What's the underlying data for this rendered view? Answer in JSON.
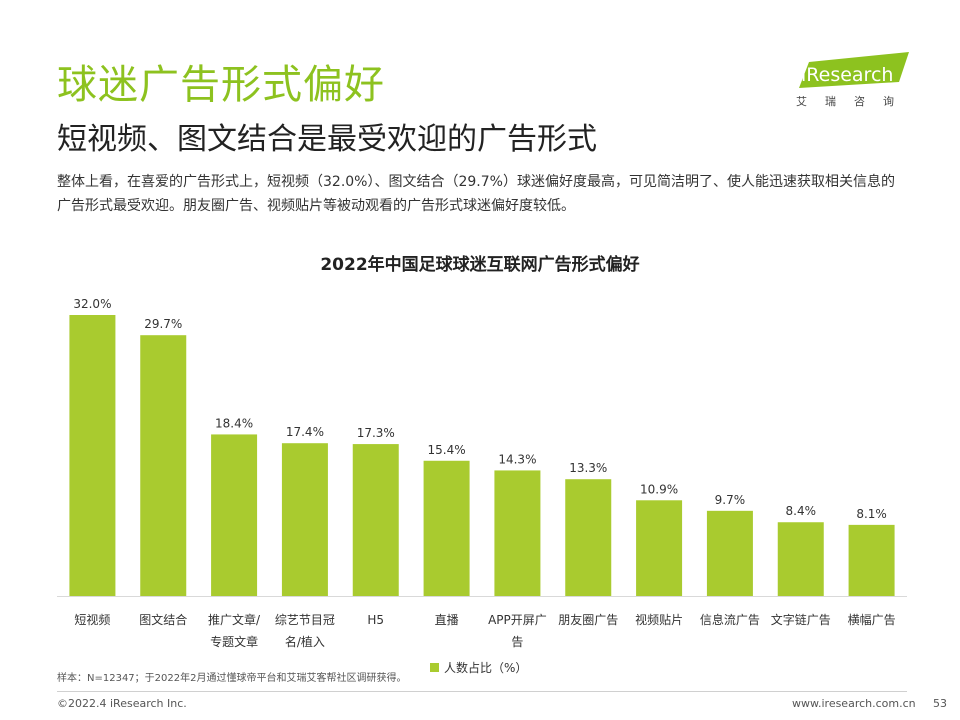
{
  "header": {
    "title": "球迷广告形式偏好",
    "subtitle": "短视频、图文结合是最受欢迎的广告形式",
    "description": "整体上看，在喜爱的广告形式上，短视频（32.0%）、图文结合（29.7%）球迷偏好度最高，可见简洁明了、使人能迅速获取相关信息的广告形式最受欢迎。朋友圈广告、视频贴片等被动观看的广告形式球迷偏好度较低。"
  },
  "logo": {
    "text_en": "iResearch",
    "text_cn": "艾瑞咨询",
    "color": "#8dc21f"
  },
  "chart_data": {
    "type": "bar",
    "title": "2022年中国足球球迷互联网广告形式偏好",
    "categories": [
      "短视频",
      "图文结合",
      "推广文章/\n专题文章",
      "综艺节目冠\n名/植入",
      "H5",
      "直播",
      "APP开屏广\n告",
      "朋友圈广告",
      "视频贴片",
      "信息流广告",
      "文字链广告",
      "横幅广告"
    ],
    "series": [
      {
        "name": "人数占比（%）",
        "values": [
          32.0,
          29.7,
          18.4,
          17.4,
          17.3,
          15.4,
          14.3,
          13.3,
          10.9,
          9.7,
          8.4,
          8.1
        ],
        "color": "#a9cb2f"
      }
    ],
    "data_labels": [
      "32.0%",
      "29.7%",
      "18.4%",
      "17.4%",
      "17.3%",
      "15.4%",
      "14.3%",
      "13.3%",
      "10.9%",
      "9.7%",
      "8.4%",
      "8.1%"
    ],
    "ylim": [
      0,
      32
    ],
    "grid": false,
    "legend_position": "bottom"
  },
  "footnote": "样本：N=12347；于2022年2月通过懂球帝平台和艾瑞艾客帮社区调研获得。",
  "footer": {
    "copyright": "©2022.4 iResearch Inc.",
    "website": "www.iresearch.com.cn",
    "page": "53"
  }
}
